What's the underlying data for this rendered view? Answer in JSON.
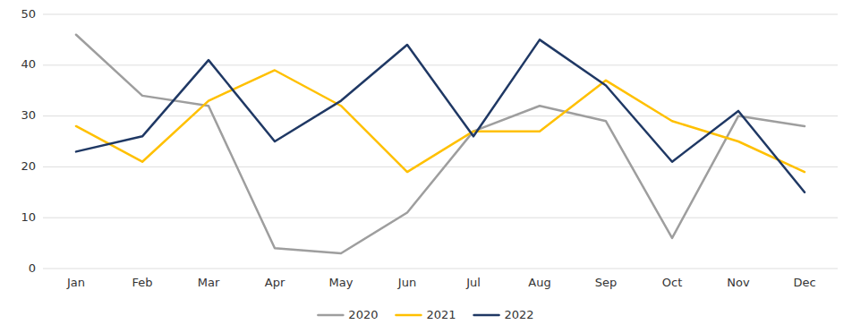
{
  "chart_data": {
    "type": "line",
    "categories": [
      "Jan",
      "Feb",
      "Mar",
      "Apr",
      "May",
      "Jun",
      "Jul",
      "Aug",
      "Sep",
      "Oct",
      "Nov",
      "Dec"
    ],
    "series": [
      {
        "name": "2020",
        "color": "#9E9E9E",
        "values": [
          46,
          34,
          32,
          4,
          3,
          11,
          27,
          32,
          29,
          6,
          30,
          28
        ]
      },
      {
        "name": "2021",
        "color": "#FFC000",
        "values": [
          28,
          21,
          33,
          39,
          32,
          19,
          27,
          27,
          37,
          29,
          25,
          19
        ]
      },
      {
        "name": "2022",
        "color": "#1F3864",
        "values": [
          23,
          26,
          41,
          25,
          33,
          44,
          26,
          45,
          36,
          21,
          31,
          15
        ]
      }
    ],
    "ylim": [
      0,
      50
    ],
    "yticks": [
      0,
      10,
      20,
      30,
      40,
      50
    ],
    "grid": true,
    "legend": "bottom"
  }
}
